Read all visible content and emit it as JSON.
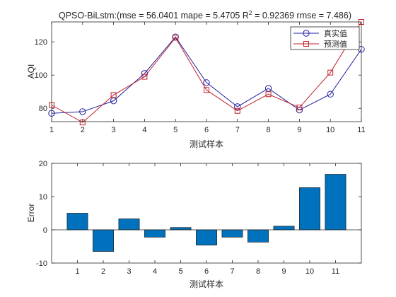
{
  "chart_data": [
    {
      "type": "line",
      "title": "QPSO-BiLstm:(mse = 56.0401 mape = 5.4705  R",
      "title_sup": "2",
      "title_tail": " = 0.92369 rmse = 7.486)",
      "xlabel": "测试样本",
      "ylabel": "AQI",
      "x": [
        1,
        2,
        3,
        4,
        5,
        6,
        7,
        8,
        9,
        10,
        11
      ],
      "xlim": [
        1,
        11
      ],
      "ylim": [
        72,
        132
      ],
      "xticks": [
        "1",
        "2",
        "3",
        "4",
        "5",
        "6",
        "7",
        "8",
        "9",
        "10",
        "11"
      ],
      "yticks": [
        80,
        100,
        120
      ],
      "ytick_labels": [
        "80",
        "100",
        "120"
      ],
      "series": [
        {
          "name": "真实值",
          "color": "#2020a0",
          "marker": "circle",
          "values": [
            77,
            78,
            84.5,
            101,
            123,
            95.5,
            81,
            92,
            79,
            88.5,
            115.5
          ]
        },
        {
          "name": "预测值",
          "color": "#c0202a",
          "marker": "square",
          "values": [
            82,
            71.5,
            88,
            99,
            122.5,
            91,
            78.5,
            88.5,
            80.5,
            101.5,
            132
          ]
        }
      ],
      "legend": "top-right"
    },
    {
      "type": "bar",
      "xlabel": "测试样本",
      "ylabel": "Error",
      "categories": [
        "1",
        "2",
        "3",
        "4",
        "5",
        "6",
        "7",
        "8",
        "9",
        "10",
        "11"
      ],
      "values": [
        5.0,
        -6.5,
        3.3,
        -2.2,
        0.7,
        -4.6,
        -2.2,
        -3.7,
        1.1,
        12.7,
        16.7
      ],
      "ylim": [
        -10,
        20
      ],
      "yticks": [
        -10,
        0,
        10,
        20
      ],
      "ytick_labels": [
        "-10",
        "0",
        "10",
        "20"
      ],
      "color": "#0072bd"
    }
  ]
}
